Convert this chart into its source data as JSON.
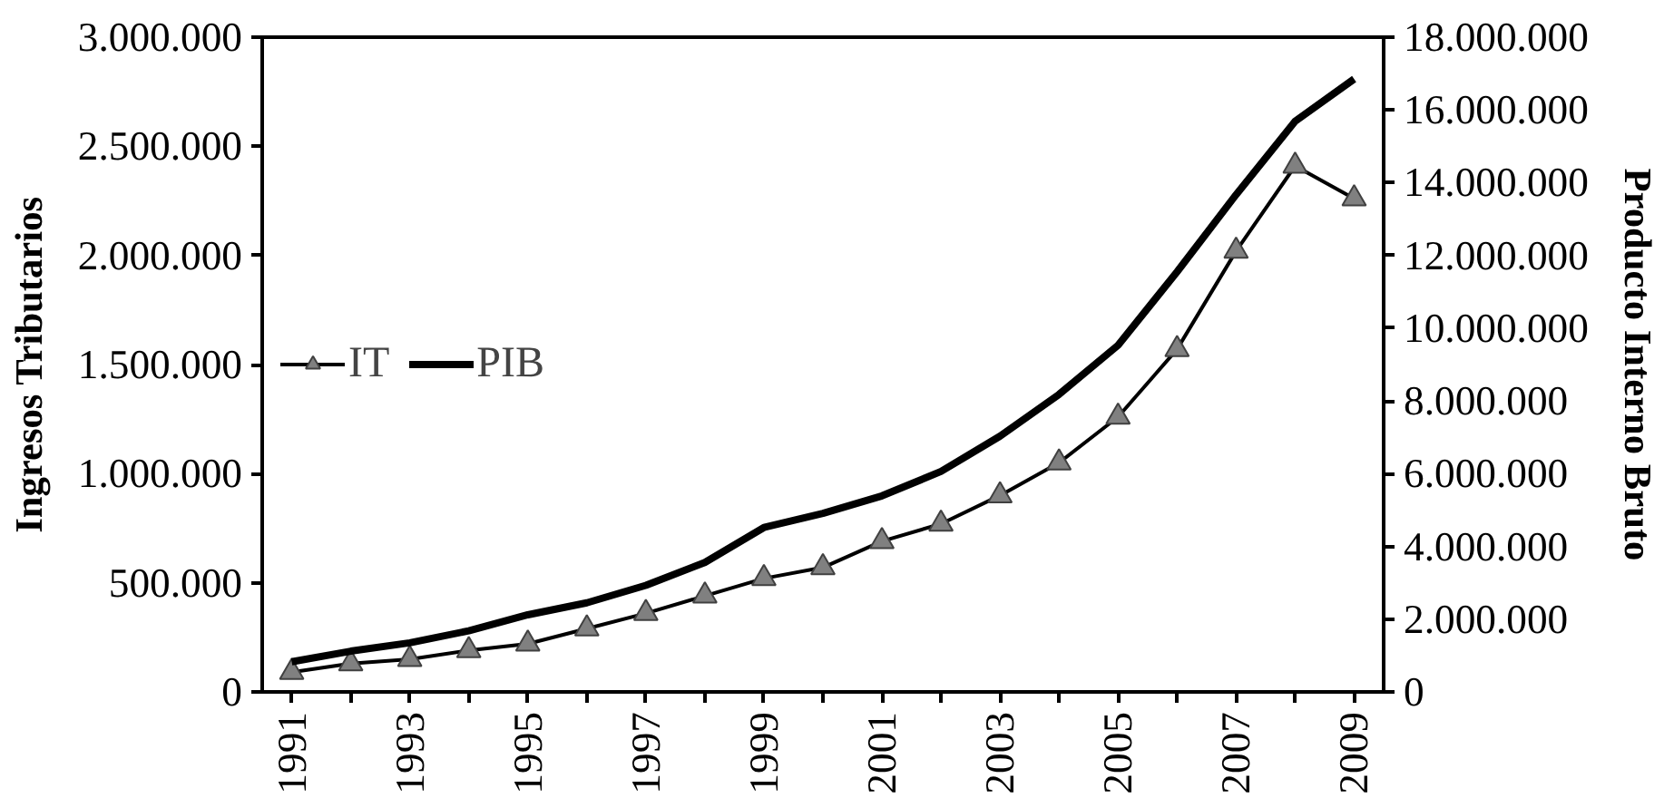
{
  "chart_data": {
    "type": "line",
    "xlabel": null,
    "ylabel": "Ingresos Tributarios",
    "y2label": "Producto Interno Bruto",
    "categories": [
      "1991",
      null,
      "1993",
      null,
      "1995",
      null,
      "1997",
      null,
      "1999",
      null,
      "2001",
      null,
      "2003",
      null,
      "2005",
      null,
      "2007",
      null,
      "2009"
    ],
    "series": [
      {
        "name": "IT",
        "color": "#000000",
        "marker": "triangle",
        "values": [
          90000,
          130000,
          150000,
          190000,
          220000,
          290000,
          360000,
          440000,
          520000,
          570000,
          690000,
          770000,
          900000,
          1050000,
          1260000,
          1570000,
          2020000,
          2410000,
          2260000
        ]
      },
      {
        "name": "PIB",
        "color": "#000000",
        "axis": "y2",
        "marker": "none",
        "values": [
          830000,
          1120000,
          1350000,
          1680000,
          2120000,
          2450000,
          2930000,
          3560000,
          4520000,
          4910000,
          5390000,
          6060000,
          7030000,
          8180000,
          9530000,
          11550000,
          13670000,
          15690000,
          16850000
        ]
      }
    ],
    "ylim": [
      0,
      3000000
    ],
    "yticks": [
      0,
      {
        "value": 500000,
        "label": "500.000"
      },
      {
        "value": 1000000,
        "label": "1.000.000"
      },
      {
        "value": 1500000,
        "label": "1.500.000"
      },
      {
        "value": 2000000,
        "label": "2.000.000"
      },
      {
        "value": 2500000,
        "label": "2.500.000"
      },
      {
        "value": 3000000,
        "label": "3.000.000"
      }
    ],
    "y2lim": [
      0,
      18000000
    ],
    "y2ticks": [
      0,
      {
        "value": 2000000,
        "label": "2.000.000"
      },
      {
        "value": 4000000,
        "label": "4.000.000"
      },
      {
        "value": 6000000,
        "label": "6.000.000"
      },
      {
        "value": 8000000,
        "label": "8.000.000"
      },
      {
        "value": 10000000,
        "label": "10.000.000"
      },
      {
        "value": 12000000,
        "label": "12.000.000"
      },
      {
        "value": 14000000,
        "label": "14.000.000"
      },
      {
        "value": 16000000,
        "label": "16.000.000"
      },
      {
        "value": 18000000,
        "label": "18.000.000"
      }
    ],
    "grid": false,
    "legend": "left"
  }
}
